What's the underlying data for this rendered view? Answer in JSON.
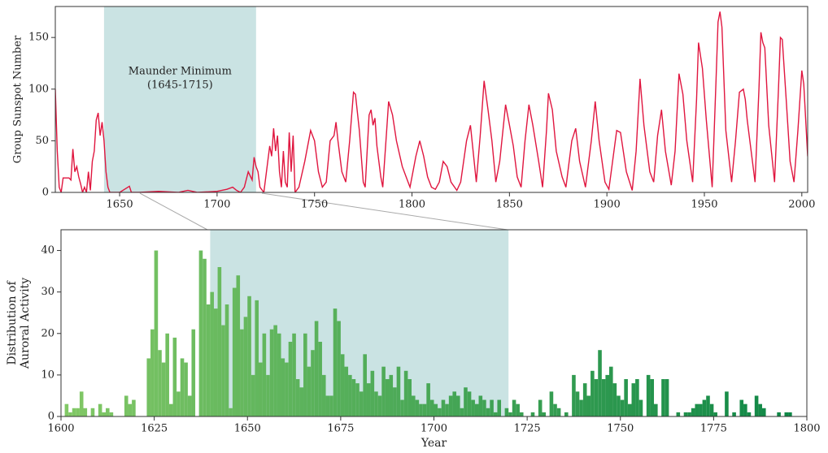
{
  "chart_data": [
    {
      "type": "line",
      "ylabel": "Group Sunspot Number",
      "annotation": [
        "Maunder Minimum",
        "(1645-1715)"
      ],
      "span": [
        1642,
        1720
      ],
      "span_color": "#cae3e3",
      "color": "#e0163f",
      "xlim": [
        1617,
        2003
      ],
      "xticks": [
        1650,
        1700,
        1750,
        1800,
        1850,
        1900,
        1950,
        2000
      ],
      "ylim": [
        0,
        180
      ],
      "yticks": [
        0,
        50,
        100,
        150
      ],
      "x": [
        1617,
        1618,
        1619,
        1620,
        1621,
        1622,
        1623,
        1624,
        1625,
        1626,
        1627,
        1628,
        1629,
        1630,
        1631,
        1632,
        1633,
        1634,
        1635,
        1636,
        1637,
        1638,
        1639,
        1640,
        1641,
        1642,
        1643,
        1644,
        1645,
        1648,
        1650,
        1655,
        1656,
        1660,
        1670,
        1680,
        1685,
        1690,
        1700,
        1705,
        1708,
        1710,
        1712,
        1714,
        1716,
        1718,
        1719,
        1720,
        1721,
        1722,
        1724,
        1726,
        1727,
        1728,
        1729,
        1730,
        1731,
        1732,
        1733,
        1734,
        1735,
        1736,
        1737,
        1738,
        1739,
        1740,
        1742,
        1745,
        1748,
        1750,
        1752,
        1754,
        1756,
        1758,
        1760,
        1761,
        1762,
        1764,
        1766,
        1768,
        1770,
        1771,
        1773,
        1775,
        1776,
        1778,
        1779,
        1780,
        1781,
        1782,
        1784,
        1785,
        1787,
        1788,
        1790,
        1792,
        1795,
        1798,
        1799,
        1802,
        1804,
        1806,
        1808,
        1810,
        1812,
        1814,
        1816,
        1818,
        1820,
        1823,
        1825,
        1828,
        1830,
        1833,
        1835,
        1837,
        1839,
        1841,
        1843,
        1845,
        1848,
        1850,
        1852,
        1854,
        1856,
        1858,
        1860,
        1862,
        1865,
        1867,
        1869,
        1870,
        1872,
        1874,
        1877,
        1879,
        1882,
        1884,
        1886,
        1889,
        1892,
        1894,
        1896,
        1899,
        1901,
        1905,
        1907,
        1910,
        1913,
        1915,
        1917,
        1919,
        1922,
        1924,
        1926,
        1928,
        1930,
        1933,
        1935,
        1937,
        1939,
        1941,
        1944,
        1946,
        1947,
        1949,
        1951,
        1954,
        1956,
        1957,
        1958,
        1959,
        1961,
        1964,
        1966,
        1968,
        1970,
        1971,
        1972,
        1974,
        1976,
        1978,
        1979,
        1980,
        1981,
        1983,
        1986,
        1988,
        1989,
        1990,
        1992,
        1994,
        1996,
        1998,
        2000,
        2001,
        2002,
        2003
      ],
      "values": [
        100,
        40,
        5,
        0,
        14,
        14,
        14,
        14,
        12,
        42,
        20,
        25,
        15,
        8,
        0,
        5,
        0,
        20,
        2,
        30,
        40,
        70,
        77,
        55,
        68,
        50,
        20,
        5,
        0,
        0,
        0,
        6,
        0,
        0,
        1,
        0,
        2,
        0,
        1,
        3,
        5,
        2,
        0,
        5,
        20,
        12,
        34,
        25,
        20,
        5,
        0,
        30,
        45,
        35,
        62,
        40,
        55,
        20,
        5,
        40,
        10,
        5,
        58,
        20,
        55,
        0,
        5,
        30,
        60,
        50,
        20,
        5,
        10,
        50,
        55,
        68,
        50,
        20,
        10,
        50,
        97,
        95,
        60,
        10,
        5,
        75,
        80,
        65,
        72,
        45,
        15,
        5,
        60,
        88,
        75,
        50,
        25,
        10,
        5,
        35,
        50,
        35,
        15,
        5,
        3,
        10,
        30,
        25,
        10,
        2,
        10,
        50,
        65,
        10,
        55,
        108,
        80,
        50,
        10,
        30,
        85,
        65,
        45,
        15,
        5,
        50,
        85,
        65,
        30,
        5,
        60,
        96,
        80,
        40,
        15,
        5,
        50,
        62,
        30,
        5,
        50,
        88,
        50,
        10,
        3,
        60,
        58,
        20,
        2,
        40,
        110,
        65,
        20,
        10,
        55,
        80,
        40,
        7,
        40,
        115,
        95,
        50,
        10,
        90,
        145,
        120,
        70,
        5,
        110,
        165,
        175,
        160,
        60,
        10,
        50,
        97,
        100,
        90,
        70,
        40,
        10,
        100,
        155,
        145,
        140,
        65,
        10,
        100,
        150,
        148,
        90,
        30,
        10,
        60,
        118,
        105,
        70,
        35
      ]
    },
    {
      "type": "histogram",
      "xlabel": "Year",
      "ylabel": [
        "Distribution of",
        "Auroral Activity"
      ],
      "span": [
        1640,
        1720
      ],
      "span_color": "#cae3e3",
      "colors": [
        "#82c866",
        "#0d8646"
      ],
      "xlim": [
        1600,
        1800
      ],
      "xticks": [
        1600,
        1625,
        1650,
        1675,
        1700,
        1725,
        1750,
        1775,
        1800
      ],
      "ylim": [
        0,
        45
      ],
      "yticks": [
        0,
        10,
        20,
        30,
        40
      ],
      "bins": [
        1600,
        1601,
        1602,
        1603,
        1604,
        1605,
        1606,
        1607,
        1608,
        1609,
        1610,
        1611,
        1612,
        1613,
        1614,
        1615,
        1616,
        1617,
        1618,
        1619,
        1620,
        1621,
        1622,
        1623,
        1624,
        1625,
        1626,
        1627,
        1628,
        1629,
        1630,
        1631,
        1632,
        1633,
        1634,
        1635,
        1636,
        1637,
        1638,
        1639,
        1640,
        1641,
        1642,
        1643,
        1644,
        1645,
        1646,
        1647,
        1648,
        1649,
        1650,
        1651,
        1652,
        1653,
        1654,
        1655,
        1656,
        1657,
        1658,
        1659,
        1660,
        1661,
        1662,
        1663,
        1664,
        1665,
        1666,
        1667,
        1668,
        1669,
        1670,
        1671,
        1672,
        1673,
        1674,
        1675,
        1676,
        1677,
        1678,
        1679,
        1680,
        1681,
        1682,
        1683,
        1684,
        1685,
        1686,
        1687,
        1688,
        1689,
        1690,
        1691,
        1692,
        1693,
        1694,
        1695,
        1696,
        1697,
        1698,
        1699,
        1700,
        1701,
        1702,
        1703,
        1704,
        1705,
        1706,
        1707,
        1708,
        1709,
        1710,
        1711,
        1712,
        1713,
        1714,
        1715,
        1716,
        1717,
        1718,
        1719,
        1720,
        1721,
        1722,
        1723,
        1724,
        1725,
        1726,
        1727,
        1728,
        1729,
        1730,
        1731,
        1732,
        1733,
        1734,
        1735,
        1736,
        1737,
        1738,
        1739,
        1740,
        1741,
        1742,
        1743,
        1744,
        1745,
        1746,
        1747,
        1748,
        1749,
        1750,
        1751,
        1752,
        1753,
        1754,
        1755,
        1756,
        1757,
        1758,
        1759,
        1760,
        1761,
        1762,
        1763,
        1764,
        1765,
        1766,
        1767,
        1768,
        1769,
        1770,
        1771,
        1772,
        1773,
        1774,
        1775,
        1776,
        1777,
        1778,
        1779,
        1780,
        1781,
        1782,
        1783,
        1784,
        1785,
        1786,
        1787,
        1788,
        1789,
        1790,
        1791,
        1792,
        1793,
        1794,
        1795,
        1796,
        1797,
        1798,
        1799,
        1800
      ],
      "counts": [
        0,
        3,
        1,
        2,
        2,
        6,
        2,
        0,
        2,
        0,
        3,
        1,
        2,
        1,
        0,
        0,
        0,
        5,
        3,
        4,
        0,
        0,
        0,
        14,
        21,
        40,
        16,
        13,
        20,
        3,
        19,
        6,
        14,
        13,
        5,
        21,
        0,
        40,
        38,
        27,
        30,
        26,
        36,
        22,
        27,
        2,
        31,
        34,
        21,
        24,
        29,
        10,
        28,
        13,
        20,
        10,
        21,
        22,
        20,
        14,
        13,
        18,
        20,
        9,
        7,
        20,
        12,
        16,
        23,
        18,
        10,
        5,
        5,
        26,
        23,
        15,
        12,
        10,
        9,
        8,
        6,
        15,
        8,
        11,
        6,
        5,
        12,
        9,
        10,
        7,
        12,
        4,
        11,
        9,
        5,
        4,
        3,
        3,
        8,
        4,
        3,
        2,
        4,
        3,
        5,
        6,
        5,
        2,
        7,
        6,
        4,
        3,
        5,
        4,
        2,
        4,
        1,
        4,
        0,
        2,
        1,
        4,
        3,
        1,
        0,
        0,
        1,
        0,
        4,
        1,
        0,
        6,
        3,
        2,
        0,
        1,
        0,
        10,
        6,
        4,
        8,
        5,
        11,
        9,
        16,
        9,
        10,
        12,
        8,
        5,
        4,
        9,
        3,
        8,
        9,
        4,
        0,
        10,
        9,
        3,
        0,
        9,
        9,
        0,
        0,
        1,
        0,
        1,
        1,
        2,
        3,
        3,
        4,
        5,
        3,
        1,
        0,
        0,
        6,
        0,
        1,
        0,
        4,
        3,
        1,
        0,
        5,
        3,
        2,
        0,
        0,
        0,
        1,
        0,
        1,
        1,
        0,
        0,
        0,
        0
      ]
    }
  ]
}
